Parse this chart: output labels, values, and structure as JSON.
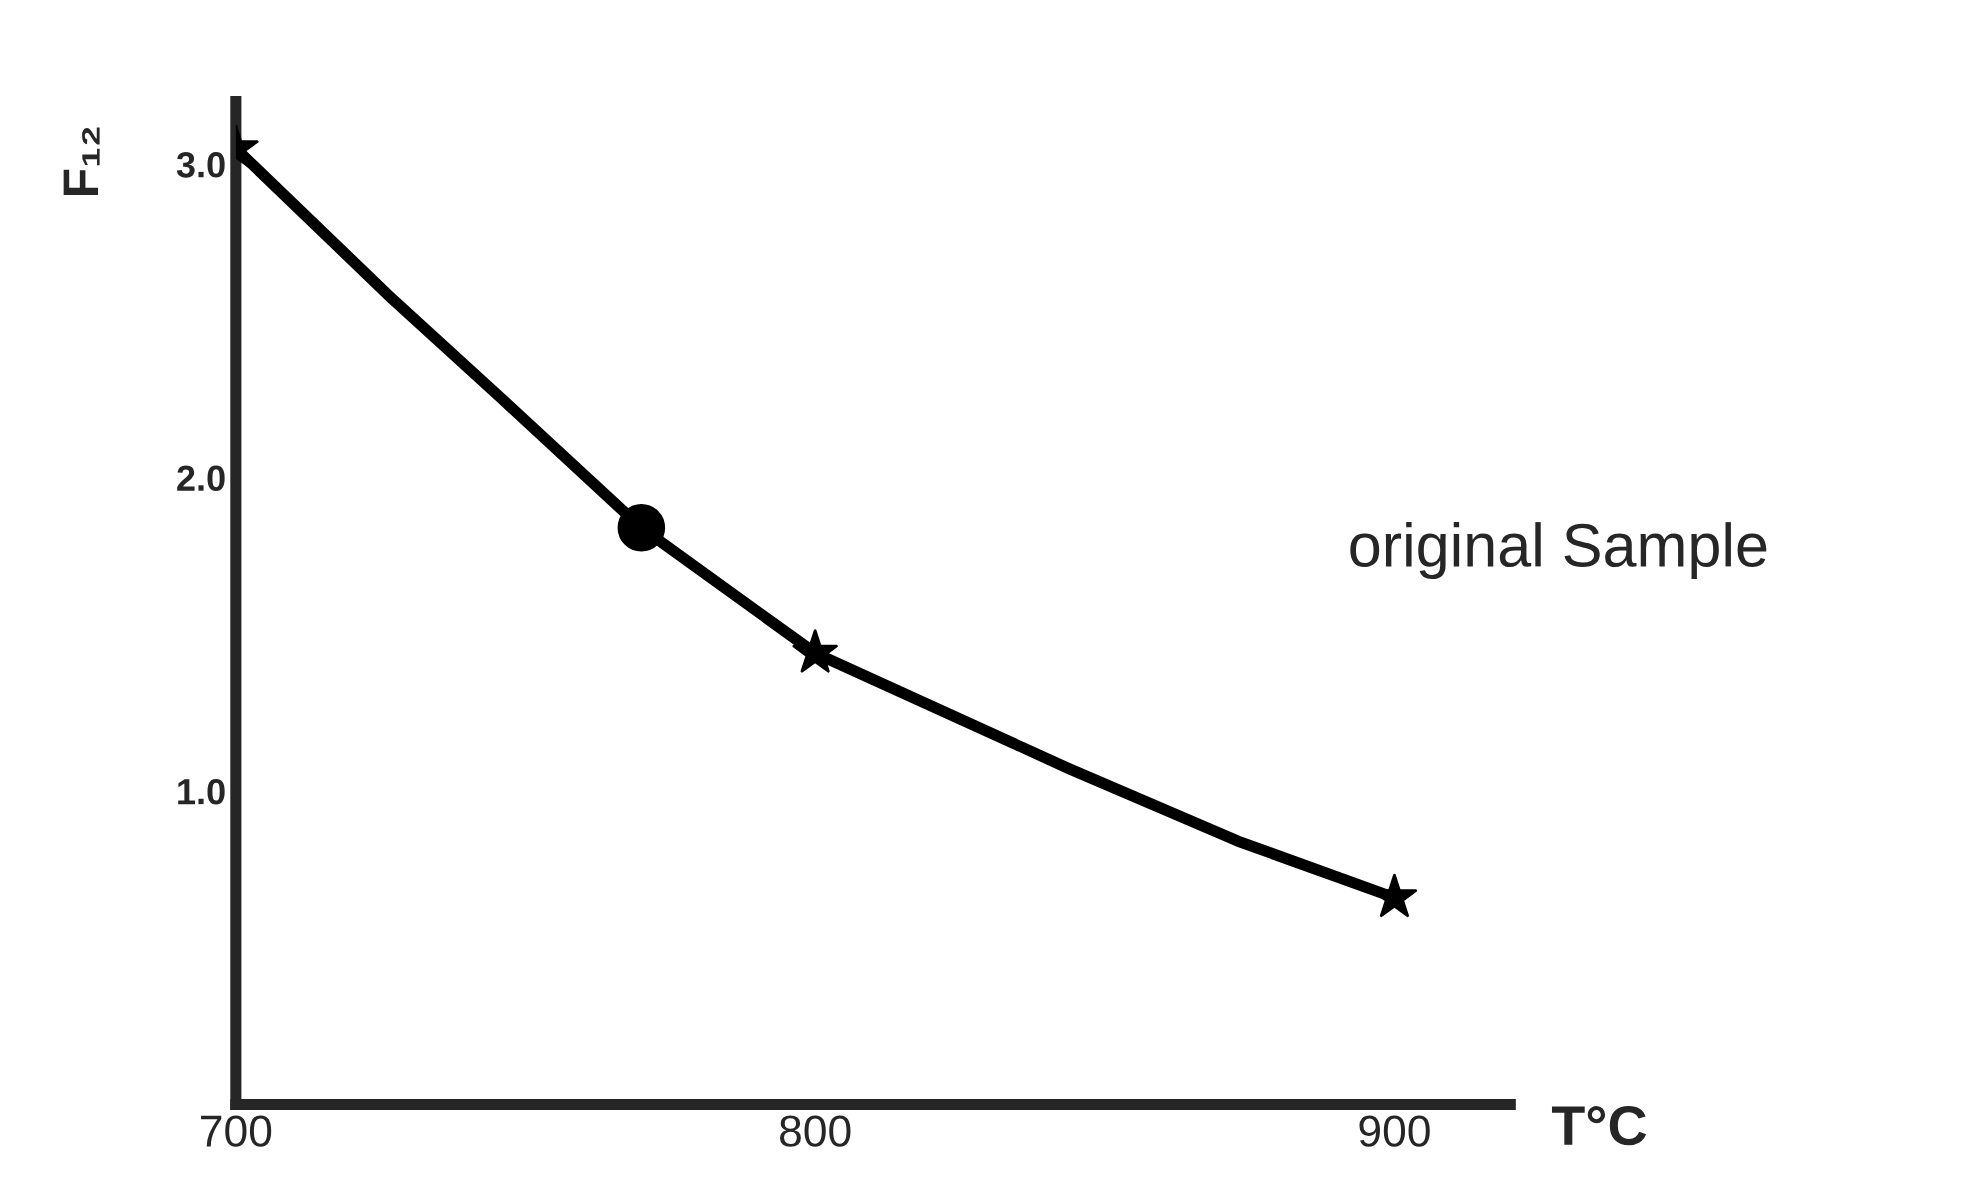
{
  "chart_data": {
    "type": "line",
    "xlabel": "T°C",
    "ylabel": "F₁₂",
    "xlim": [
      700,
      920
    ],
    "ylim": [
      0,
      3.2
    ],
    "xticks": [
      700,
      800,
      900
    ],
    "yticks": [
      {
        "value": 1.0,
        "label": "1.0"
      },
      {
        "value": 2.0,
        "label": "2.0"
      },
      {
        "value": 3.0,
        "label": "3.0"
      }
    ],
    "grid": false,
    "series": [
      {
        "color": "#000000",
        "marker": "none",
        "x": [
          700,
          727,
          746,
          770,
          800,
          844,
          873,
          900
        ],
        "values": [
          3.05,
          2.57,
          2.25,
          1.84,
          1.44,
          1.07,
          0.84,
          0.66
        ]
      },
      {
        "type": "scatter",
        "color": "#000000",
        "marker": "star",
        "x": [
          700,
          800,
          900
        ],
        "values": [
          3.05,
          1.44,
          0.66
        ]
      },
      {
        "type": "scatter",
        "color": "#000000",
        "marker": "circle",
        "x": [
          770
        ],
        "values": [
          1.84
        ]
      }
    ],
    "annotations": [
      "original Sample"
    ]
  }
}
